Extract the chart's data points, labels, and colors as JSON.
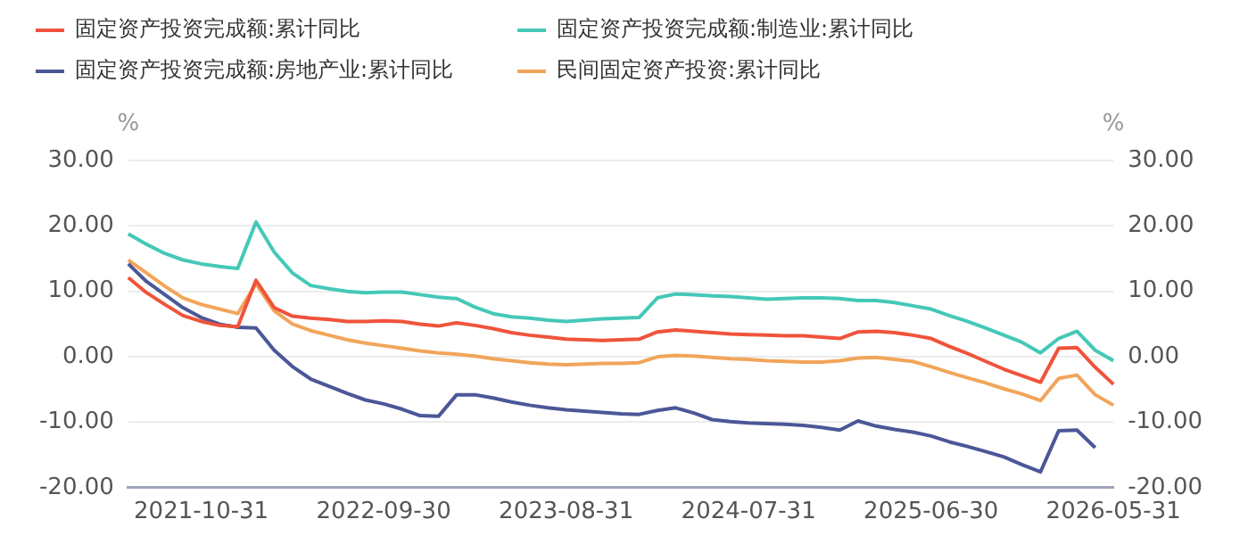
{
  "chart_data": {
    "type": "line",
    "categories": [
      null,
      null,
      null,
      null,
      "2021-10-31",
      null,
      null,
      null,
      null,
      null,
      null,
      null,
      null,
      null,
      "2022-09-30",
      null,
      null,
      null,
      null,
      null,
      null,
      null,
      null,
      null,
      "2023-08-31",
      null,
      null,
      null,
      null,
      null,
      null,
      null,
      null,
      null,
      "2024-07-31",
      null,
      null,
      null,
      null,
      null,
      null,
      null,
      null,
      null,
      "2025-06-30",
      null,
      null,
      null,
      null,
      null,
      null,
      null,
      null,
      null,
      "2026-05-31"
    ],
    "series": [
      {
        "name": "固定资产投资完成额:累计同比",
        "color": "#f0533b",
        "values": [
          12.1,
          9.8,
          8.0,
          6.3,
          5.4,
          4.8,
          4.6,
          11.7,
          7.5,
          6.2,
          5.9,
          5.7,
          5.4,
          5.4,
          5.5,
          5.4,
          5.0,
          4.7,
          5.2,
          4.8,
          4.3,
          3.7,
          3.3,
          3.0,
          2.7,
          2.6,
          2.5,
          2.6,
          2.7,
          3.8,
          4.1,
          3.9,
          3.7,
          3.5,
          3.4,
          3.3,
          3.2,
          3.2,
          3.0,
          2.8,
          3.8,
          3.9,
          3.7,
          3.3,
          2.8,
          1.6,
          0.5,
          -0.7,
          -1.9,
          -2.9,
          -3.9,
          1.3,
          1.4,
          -1.6,
          -4.2
        ]
      },
      {
        "name": "固定资产投资完成额:制造业:累计同比",
        "color": "#45c8b8",
        "values": [
          18.8,
          17.2,
          15.8,
          14.8,
          14.2,
          13.8,
          13.5,
          20.6,
          16.0,
          12.8,
          10.9,
          10.4,
          10.0,
          9.8,
          9.9,
          9.9,
          9.5,
          9.1,
          8.9,
          7.6,
          6.6,
          6.1,
          5.9,
          5.6,
          5.4,
          5.6,
          5.8,
          5.9,
          6.0,
          9.0,
          9.6,
          9.5,
          9.3,
          9.2,
          9.0,
          8.8,
          8.9,
          9.0,
          9.0,
          8.9,
          8.6,
          8.6,
          8.3,
          7.8,
          7.3,
          6.3,
          5.4,
          4.4,
          3.3,
          2.2,
          0.6,
          2.8,
          3.9,
          1.0,
          -0.6
        ]
      },
      {
        "name": "固定资产投资完成额:房地产业:累计同比",
        "color": "#4b5797",
        "values": [
          14.2,
          11.5,
          9.5,
          7.5,
          6.0,
          5.0,
          4.5,
          4.4,
          1.0,
          -1.5,
          -3.4,
          -4.5,
          -5.6,
          -6.6,
          -7.2,
          -8.0,
          -9.0,
          -9.1,
          -5.8,
          -5.8,
          -6.3,
          -6.9,
          -7.4,
          -7.8,
          -8.1,
          -8.3,
          -8.5,
          -8.7,
          -8.8,
          -8.2,
          -7.8,
          -8.6,
          -9.6,
          -9.9,
          -10.1,
          -10.2,
          -10.3,
          -10.5,
          -10.8,
          -11.2,
          -9.8,
          -10.6,
          -11.1,
          -11.5,
          -12.1,
          -13.0,
          -13.7,
          -14.5,
          -15.3,
          -16.5,
          -17.6,
          -11.3,
          -11.2,
          -13.9,
          null
        ]
      },
      {
        "name": "民间固定资产投资:累计同比",
        "color": "#f2a55a",
        "values": [
          14.8,
          12.8,
          10.8,
          9.0,
          8.0,
          7.3,
          6.6,
          11.2,
          7.0,
          5.0,
          4.0,
          3.3,
          2.6,
          2.1,
          1.7,
          1.3,
          0.9,
          0.6,
          0.4,
          0.1,
          -0.3,
          -0.6,
          -0.9,
          -1.1,
          -1.2,
          -1.1,
          -1.0,
          -1.0,
          -0.9,
          0.0,
          0.2,
          0.1,
          -0.1,
          -0.3,
          -0.4,
          -0.6,
          -0.7,
          -0.8,
          -0.8,
          -0.6,
          -0.2,
          -0.1,
          -0.4,
          -0.7,
          -1.5,
          -2.4,
          -3.2,
          -4.0,
          -4.9,
          -5.7,
          -6.7,
          -3.3,
          -2.8,
          -5.8,
          -7.4
        ]
      }
    ],
    "ylabel": "%",
    "y2label": "%",
    "ylim": [
      -20,
      30
    ],
    "yticks": [
      {
        "value": -20,
        "label": "-20.00"
      },
      {
        "value": -10,
        "label": "-10.00"
      },
      {
        "value": 0,
        "label": "0.00"
      },
      {
        "value": 10,
        "label": "10.00"
      },
      {
        "value": 20,
        "label": "20.00"
      },
      {
        "value": 30,
        "label": "30.00"
      }
    ],
    "y2lim": [
      -20,
      30
    ],
    "y2ticks": [
      {
        "value": -20,
        "label": "-20.00"
      },
      {
        "value": -10,
        "label": "-10.00"
      },
      {
        "value": 0,
        "label": "0.00"
      },
      {
        "value": 10,
        "label": "10.00"
      },
      {
        "value": 20,
        "label": "20.00"
      },
      {
        "value": 30,
        "label": "30.00"
      }
    ],
    "grid": "y",
    "legend": "top left",
    "marker": "none",
    "line_style": "solid"
  }
}
